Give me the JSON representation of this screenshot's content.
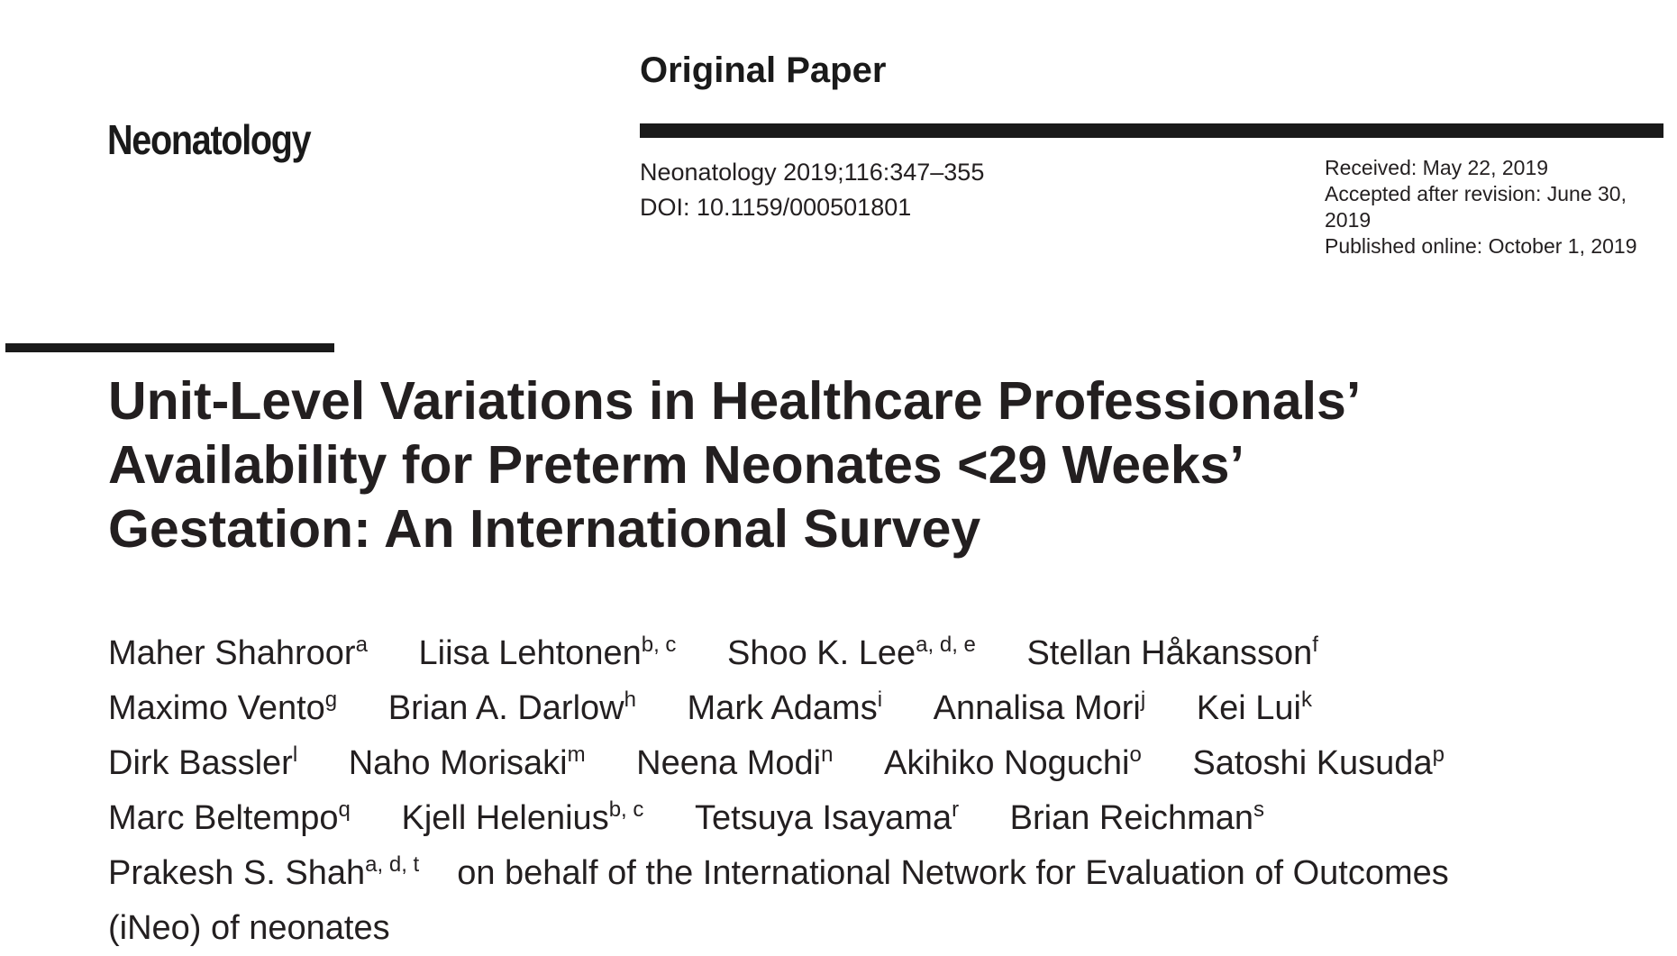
{
  "journal": {
    "logo": "Neonatology",
    "article_type": "Original Paper",
    "citation": "Neonatology 2019;116:347–355",
    "doi": "DOI: 10.1159/000501801",
    "received": "Received: May 22, 2019",
    "accepted": "Accepted after revision: June 30, 2019",
    "published": "Published online: October 1, 2019"
  },
  "title": {
    "line1": "Unit-Level Variations in Healthcare Professionals’",
    "line2": "Availability for Preterm Neonates <29 Weeks’",
    "line3": "Gestation: An International Survey"
  },
  "authors": [
    {
      "name": "Maher Shahroor",
      "aff": "a"
    },
    {
      "name": "Liisa Lehtonen",
      "aff": "b, c"
    },
    {
      "name": "Shoo K. Lee",
      "aff": "a, d, e"
    },
    {
      "name": "Stellan Håkansson",
      "aff": "f"
    },
    {
      "name": "Maximo Vento",
      "aff": "g"
    },
    {
      "name": "Brian A. Darlow",
      "aff": "h"
    },
    {
      "name": "Mark Adams",
      "aff": "i"
    },
    {
      "name": "Annalisa Mori",
      "aff": "j"
    },
    {
      "name": "Kei Lui",
      "aff": "k"
    },
    {
      "name": "Dirk Bassler",
      "aff": "l"
    },
    {
      "name": "Naho Morisaki",
      "aff": "m"
    },
    {
      "name": "Neena Modi",
      "aff": "n"
    },
    {
      "name": "Akihiko Noguchi",
      "aff": "o"
    },
    {
      "name": "Satoshi Kusuda",
      "aff": "p"
    },
    {
      "name": "Marc Beltempo",
      "aff": "q"
    },
    {
      "name": "Kjell Helenius",
      "aff": "b, c"
    },
    {
      "name": "Tetsuya Isayama",
      "aff": "r"
    },
    {
      "name": "Brian Reichman",
      "aff": "s"
    },
    {
      "name": "Prakesh S. Shah",
      "aff": "a, d, t"
    }
  ],
  "on_behalf": "on behalf of the International Network for Evaluation of Outcomes (iNeo) of neonates"
}
